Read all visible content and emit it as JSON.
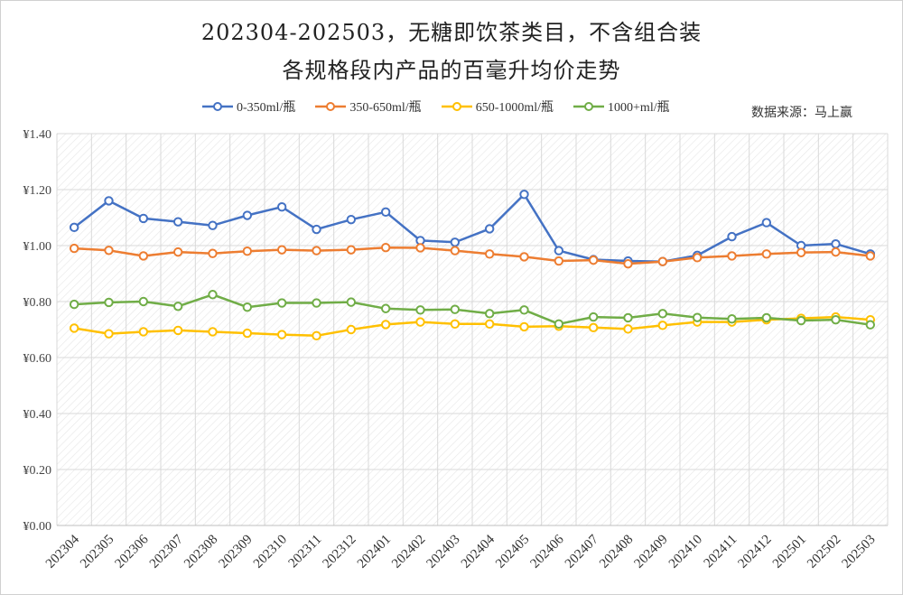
{
  "title_line1": "202304-202503，无糖即饮茶类目，不含组合装",
  "title_line2": "各规格段内产品的百毫升均价走势",
  "source": "数据来源：马上赢",
  "chart_data": {
    "type": "line",
    "categories": [
      "202304",
      "202305",
      "202306",
      "202307",
      "202308",
      "202309",
      "202310",
      "202311",
      "202312",
      "202401",
      "202402",
      "202403",
      "202404",
      "202405",
      "202406",
      "202407",
      "202408",
      "202409",
      "202410",
      "202411",
      "202412",
      "202501",
      "202502",
      "202503"
    ],
    "ylim": [
      0,
      1.4
    ],
    "yticks": [
      "¥0.00",
      "¥0.20",
      "¥0.40",
      "¥0.60",
      "¥0.80",
      "¥1.00",
      "¥1.20",
      "¥1.40"
    ],
    "grid": true,
    "legend_position": "top",
    "series": [
      {
        "name": "0-350ml/瓶",
        "color": "#4472C4",
        "values": [
          1.065,
          1.16,
          1.097,
          1.085,
          1.072,
          1.108,
          1.138,
          1.058,
          1.093,
          1.12,
          1.018,
          1.012,
          1.06,
          1.183,
          0.982,
          0.95,
          0.945,
          0.943,
          0.965,
          1.032,
          1.082,
          1.0,
          1.006,
          0.97
        ]
      },
      {
        "name": "350-650ml/瓶",
        "color": "#ED7D31",
        "values": [
          0.99,
          0.983,
          0.963,
          0.977,
          0.972,
          0.98,
          0.985,
          0.982,
          0.985,
          0.993,
          0.992,
          0.982,
          0.97,
          0.96,
          0.945,
          0.948,
          0.935,
          0.943,
          0.957,
          0.963,
          0.97,
          0.975,
          0.977,
          0.963
        ]
      },
      {
        "name": "650-1000ml/瓶",
        "color": "#FFC000",
        "values": [
          0.705,
          0.685,
          0.692,
          0.697,
          0.692,
          0.687,
          0.682,
          0.678,
          0.7,
          0.718,
          0.727,
          0.72,
          0.72,
          0.71,
          0.712,
          0.707,
          0.702,
          0.715,
          0.727,
          0.727,
          0.735,
          0.74,
          0.745,
          0.735
        ]
      },
      {
        "name": "1000+ml/瓶",
        "color": "#70AD47",
        "values": [
          0.79,
          0.797,
          0.8,
          0.783,
          0.825,
          0.78,
          0.795,
          0.795,
          0.798,
          0.775,
          0.77,
          0.772,
          0.757,
          0.77,
          0.72,
          0.745,
          0.742,
          0.757,
          0.743,
          0.738,
          0.742,
          0.732,
          0.735,
          0.717
        ]
      }
    ]
  }
}
